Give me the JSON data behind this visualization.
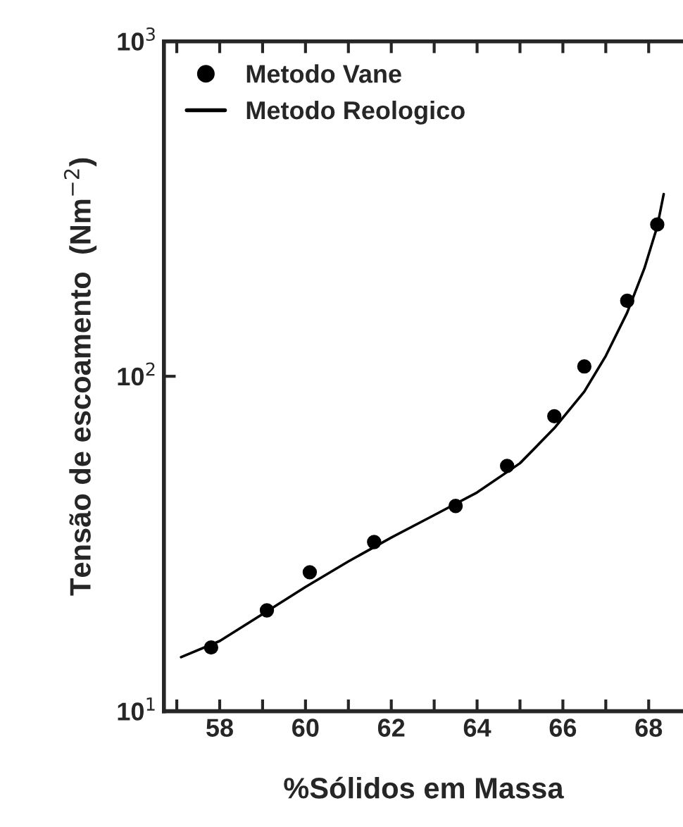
{
  "chart_data": {
    "type": "scatter",
    "xlabel": "%Sólidos em Massa",
    "ylabel": "Tensão de escoamento  (Nm$^{−2}$)",
    "log": "y",
    "xlim": [
      56.7,
      68.8
    ],
    "ylim": [
      10,
      1000
    ],
    "xticks": [
      {
        "value": 57,
        "label": null
      },
      58,
      {
        "value": 59,
        "label": null
      },
      60,
      {
        "value": 61,
        "label": null
      },
      62,
      {
        "value": 63,
        "label": null
      },
      64,
      {
        "value": 65,
        "label": null
      },
      66,
      {
        "value": 67,
        "label": null
      },
      68
    ],
    "yticks": [
      {
        "value": 10,
        "label": "10$^{1}$"
      },
      {
        "value": 100,
        "label": "10$^{2}$"
      },
      {
        "value": 1000,
        "label": "10$^{3}$"
      }
    ],
    "legend": "top left",
    "grid": false,
    "series": [
      {
        "name": "Metodo Vane",
        "marker": "circle",
        "color": "#000000",
        "x": [
          57.8,
          59.1,
          60.1,
          61.6,
          63.5,
          64.7,
          65.8,
          66.5,
          67.5,
          68.2
        ],
        "values": [
          15.5,
          20,
          26,
          32,
          41,
          54,
          76,
          107,
          168,
          284
        ]
      },
      {
        "name": "Metodo Reologico",
        "type": "line",
        "marker": "none",
        "line_style": "solid",
        "color": "#000000",
        "x": [
          57.1,
          58,
          59,
          60,
          61,
          62,
          63,
          64,
          65,
          65.8,
          66.5,
          67,
          67.5,
          67.9,
          68.2,
          68.35
        ],
        "values": [
          14.5,
          16.2,
          19.5,
          23.5,
          28,
          33,
          38.5,
          45,
          55,
          70,
          90,
          115,
          155,
          210,
          280,
          350
        ]
      }
    ]
  }
}
